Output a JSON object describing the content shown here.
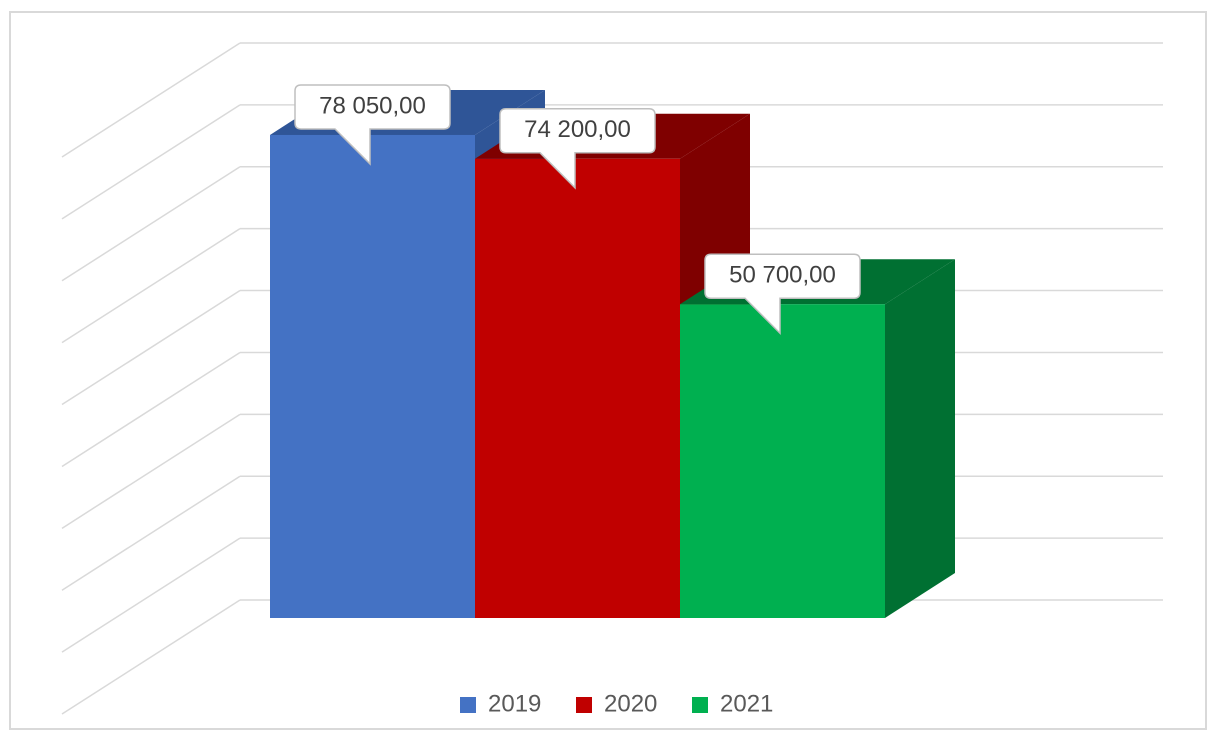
{
  "chart_data": {
    "type": "bar3d",
    "categories": [
      null
    ],
    "series": [
      {
        "name": "2019",
        "color": "#4472c4",
        "side": "#2f5597",
        "values": [
          78050
        ],
        "value_labels": [
          "78 050,00"
        ]
      },
      {
        "name": "2020",
        "color": "#c00000",
        "side": "#7f0000",
        "values": [
          74200
        ],
        "value_labels": [
          "74 200,00"
        ]
      },
      {
        "name": "2021",
        "color": "#00b050",
        "side": "#007032",
        "values": [
          50700
        ],
        "value_labels": [
          "50 700,00"
        ]
      }
    ],
    "ylim": [
      0,
      90000
    ],
    "yticks": [
      0,
      10000,
      20000,
      30000,
      40000,
      50000,
      60000,
      70000,
      80000,
      90000
    ],
    "grid": true,
    "legend": "bottom"
  }
}
